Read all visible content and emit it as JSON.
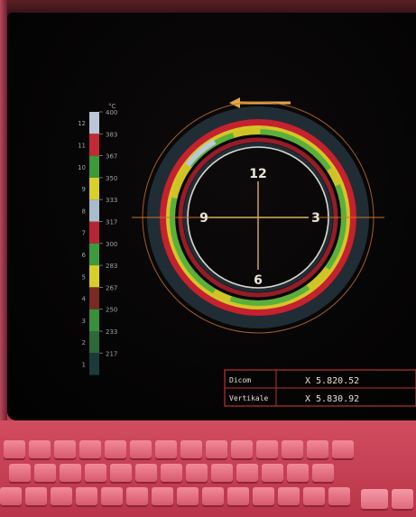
{
  "scale": {
    "unit": "°C",
    "levels": [
      {
        "index": "12",
        "temp": "400",
        "color": "#b9c7d6"
      },
      {
        "index": "11",
        "temp": "383",
        "color": "#c22a38"
      },
      {
        "index": "10",
        "temp": "367",
        "color": "#3c9a3a"
      },
      {
        "index": "9",
        "temp": "350",
        "color": "#d9cf2a"
      },
      {
        "index": "8",
        "temp": "333",
        "color": "#a8bccc"
      },
      {
        "index": "7",
        "temp": "317",
        "color": "#b52634"
      },
      {
        "index": "6",
        "temp": "300",
        "color": "#3d9b3c"
      },
      {
        "index": "5",
        "temp": "283",
        "color": "#d8ce28"
      },
      {
        "index": "4",
        "temp": "267",
        "color": "#7a2a22"
      },
      {
        "index": "3",
        "temp": "250",
        "color": "#3a8f3a"
      },
      {
        "index": "2",
        "temp": "233",
        "color": "#2c6a3a"
      },
      {
        "index": "1",
        "temp": "217",
        "color": "#1c3a3a"
      }
    ]
  },
  "dial": {
    "mark_12": "12",
    "mark_3": "3",
    "mark_6": "6",
    "mark_9": "9",
    "accent": "#e8b24a"
  },
  "readout": {
    "row1_label": "Dicom",
    "row1_value": "X 5.820.52",
    "row2_label": "Vertikale",
    "row2_value": "X 5.830.92"
  },
  "colors": {
    "screen": "#050404",
    "body": "#c23a4c",
    "ring_outer": "#2e3a3a",
    "ring_red": "#c4222e",
    "ring_yellow": "#d8d32a",
    "ring_green": "#4cae3e"
  }
}
